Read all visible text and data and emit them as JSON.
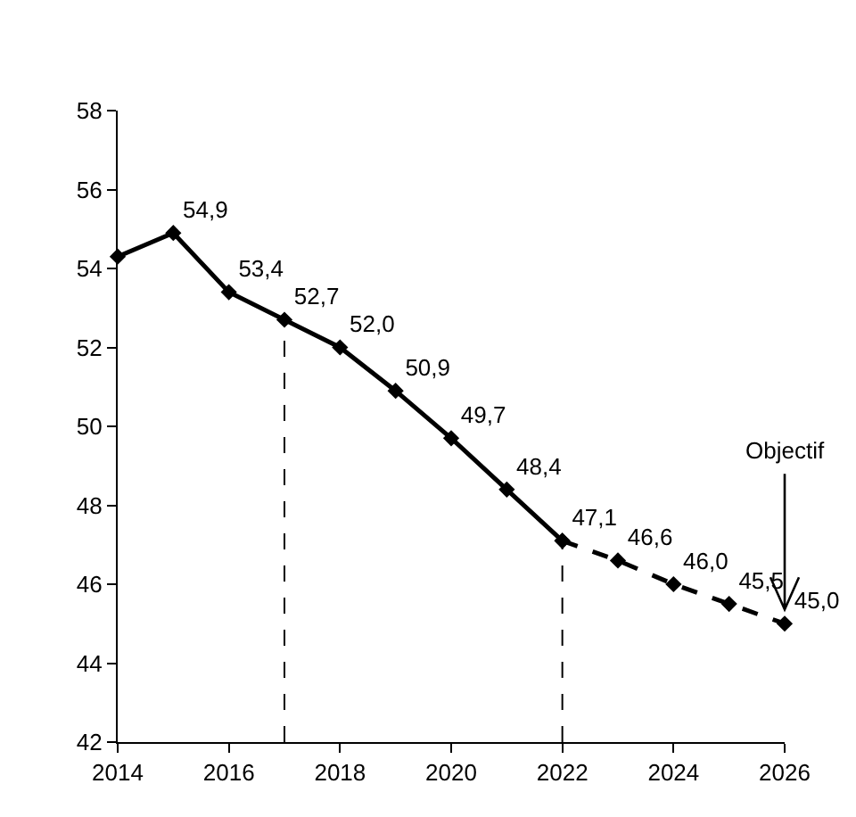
{
  "chart_data": {
    "type": "line",
    "xlim": [
      2014,
      2026
    ],
    "xticks": [
      2014,
      2016,
      2018,
      2020,
      2022,
      2024,
      2026
    ],
    "ylim": [
      42,
      58
    ],
    "yticks": [
      42,
      44,
      46,
      48,
      50,
      52,
      54,
      56,
      58
    ],
    "grid": false,
    "marker": "diamond",
    "series": [
      {
        "color": "#000000",
        "line_style": "solid",
        "x": [
          2014,
          2015,
          2016,
          2017,
          2018,
          2019,
          2020,
          2021,
          2022
        ],
        "values": [
          54.3,
          54.9,
          53.4,
          52.7,
          52.0,
          50.9,
          49.7,
          48.4,
          47.1
        ],
        "value_labels": [
          null,
          "54,9",
          "53,4",
          "52,7",
          "52,0",
          "50,9",
          "49,7",
          "48,4",
          "47,1"
        ]
      },
      {
        "color": "#000000",
        "line_style": "dashed",
        "x": [
          2022,
          2023,
          2024,
          2025,
          2026
        ],
        "values": [
          47.1,
          46.6,
          46.0,
          45.5,
          45.0
        ],
        "value_labels": [
          null,
          "46,6",
          "46,0",
          "45,5",
          "45,0"
        ]
      }
    ],
    "ref_lines": [
      {
        "axis": "x",
        "value": 2017,
        "color": "#000000",
        "line_style": "dashed"
      },
      {
        "axis": "x",
        "value": 2022,
        "color": "#000000",
        "line_style": "dashed"
      }
    ],
    "annotations": [
      {
        "text": "Objectif",
        "x": 2026,
        "y": 45.0
      }
    ]
  }
}
